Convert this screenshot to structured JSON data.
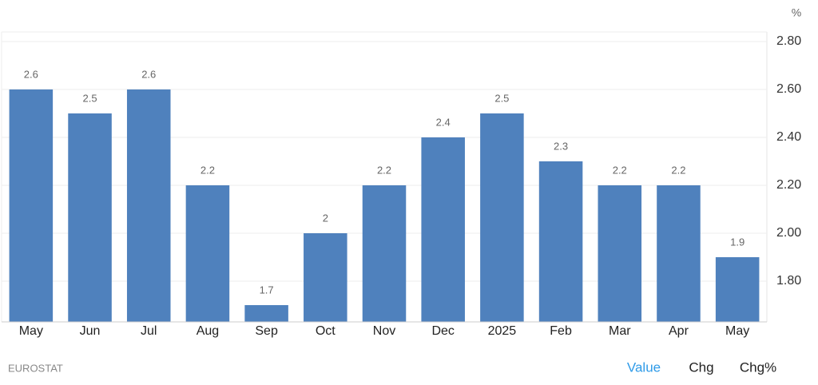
{
  "chart_data": {
    "type": "bar",
    "unit": "%",
    "categories": [
      "May",
      "Jun",
      "Jul",
      "Aug",
      "Sep",
      "Oct",
      "Nov",
      "Dec",
      "2025",
      "Feb",
      "Mar",
      "Apr",
      "May"
    ],
    "values": [
      2.6,
      2.5,
      2.6,
      2.2,
      1.7,
      2,
      2.2,
      2.4,
      2.5,
      2.3,
      2.2,
      2.2,
      1.9
    ],
    "color": "#4f81bd",
    "ylim": [
      1.63,
      2.84
    ],
    "yticks": [
      {
        "value": 1.8,
        "label": "1.80"
      },
      {
        "value": 2.0,
        "label": "2.00"
      },
      {
        "value": 2.2,
        "label": "2.20"
      },
      {
        "value": 2.4,
        "label": "2.40"
      },
      {
        "value": 2.6,
        "label": "2.60"
      },
      {
        "value": 2.8,
        "label": "2.80"
      }
    ],
    "grid": true,
    "source": "EUROSTAT",
    "tabs": [
      "Value",
      "Chg",
      "Chg%"
    ]
  }
}
